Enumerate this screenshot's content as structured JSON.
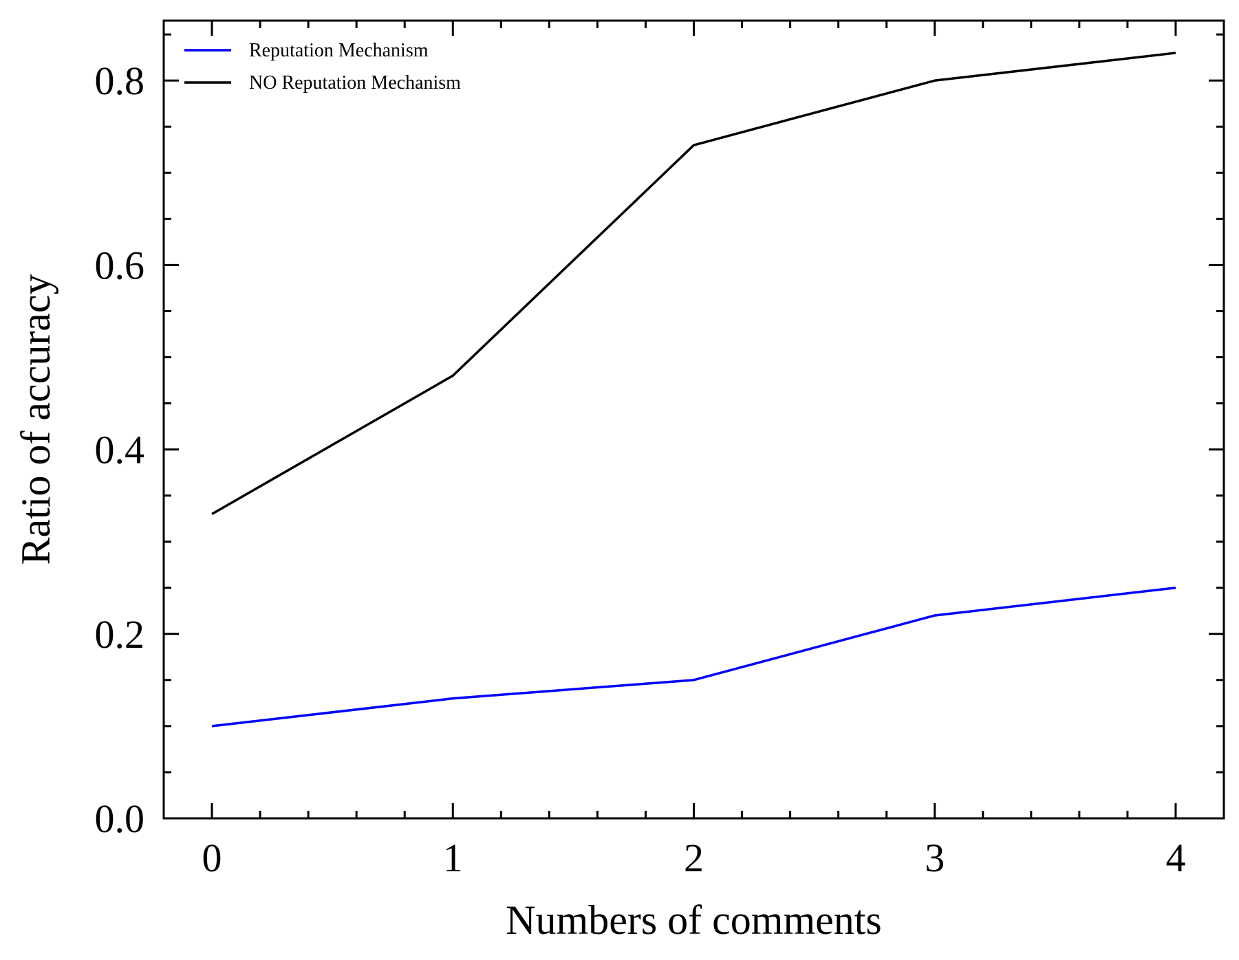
{
  "chart_data": {
    "type": "line",
    "title": "",
    "xlabel": "Numbers of comments",
    "ylabel": "Ratio of accuracy",
    "x": [
      0,
      1,
      2,
      3,
      4
    ],
    "xlim": [
      -0.2,
      4.2
    ],
    "ylim": [
      0,
      0.865
    ],
    "x_ticks": [
      "0",
      "1",
      "2",
      "3",
      "4"
    ],
    "y_ticks": [
      "0.0",
      "0.2",
      "0.4",
      "0.6",
      "0.8"
    ],
    "grid": false,
    "legend_position": "top-left",
    "series": [
      {
        "name": "Reputation Mechanism",
        "color": "#0000ff",
        "values": [
          0.1,
          0.13,
          0.15,
          0.22,
          0.25
        ]
      },
      {
        "name": "NO Reputation Mechanism",
        "color": "#000000",
        "values": [
          0.33,
          0.48,
          0.73,
          0.8,
          0.83
        ]
      }
    ]
  }
}
